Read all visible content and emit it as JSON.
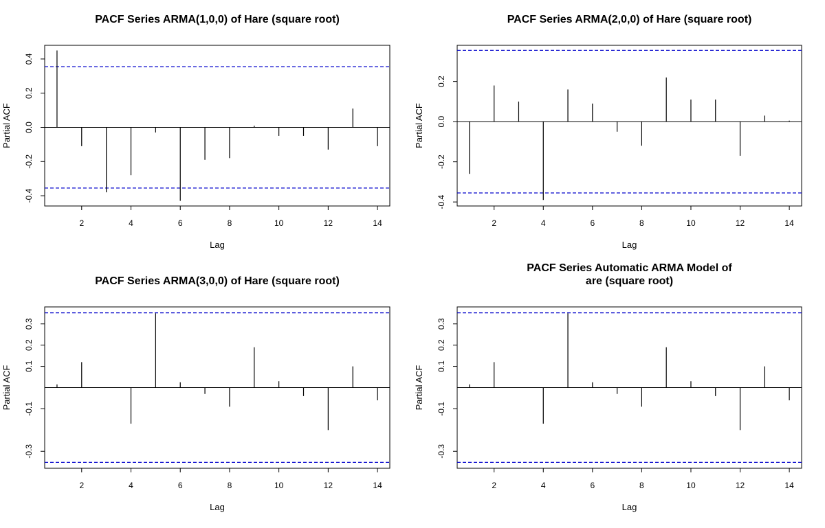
{
  "chart_data": [
    {
      "type": "bar",
      "title": [
        "PACF Series ARMA(1,0,0) of Hare (square root)"
      ],
      "xlabel": "Lag",
      "ylabel": "Partial ACF",
      "x": [
        1,
        2,
        3,
        4,
        5,
        6,
        7,
        8,
        9,
        10,
        11,
        12,
        13,
        14
      ],
      "values": [
        0.45,
        -0.11,
        -0.38,
        -0.28,
        -0.03,
        -0.43,
        -0.19,
        -0.18,
        0.01,
        -0.05,
        -0.05,
        -0.13,
        0.11,
        -0.11
      ],
      "xlim": [
        0.5,
        14.5
      ],
      "ylim": [
        -0.46,
        0.48
      ],
      "xticks": [
        2,
        4,
        6,
        8,
        10,
        12,
        14
      ],
      "yticks": [
        -0.4,
        -0.2,
        0.0,
        0.2,
        0.4
      ],
      "ytick_labels": [
        "-0.4",
        "-0.2",
        "0.0",
        "0.2",
        "0.4"
      ],
      "confidence_bound": 0.355,
      "bar_color": "#000000",
      "bound_color": "#0000cc",
      "grid": false
    },
    {
      "type": "bar",
      "title": [
        "PACF Series ARMA(2,0,0) of Hare (square root)"
      ],
      "xlabel": "Lag",
      "ylabel": "Partial ACF",
      "x": [
        1,
        2,
        3,
        4,
        5,
        6,
        7,
        8,
        9,
        10,
        11,
        12,
        13,
        14
      ],
      "values": [
        -0.26,
        0.18,
        0.1,
        -0.39,
        0.16,
        0.09,
        -0.05,
        -0.12,
        0.22,
        0.11,
        0.11,
        -0.17,
        0.03,
        0.005
      ],
      "xlim": [
        0.5,
        14.5
      ],
      "ylim": [
        -0.42,
        0.38
      ],
      "xticks": [
        2,
        4,
        6,
        8,
        10,
        12,
        14
      ],
      "yticks": [
        -0.4,
        -0.2,
        0.0,
        0.2
      ],
      "ytick_labels": [
        "-0.4",
        "-0.2",
        "0.0",
        "0.2"
      ],
      "confidence_bound": 0.355,
      "bar_color": "#000000",
      "bound_color": "#0000cc",
      "grid": false
    },
    {
      "type": "bar",
      "title": [
        "PACF Series ARMA(3,0,0) of Hare (square root)"
      ],
      "xlabel": "Lag",
      "ylabel": "Partial ACF",
      "x": [
        1,
        2,
        3,
        4,
        5,
        6,
        7,
        8,
        9,
        10,
        11,
        12,
        13,
        14
      ],
      "values": [
        0.015,
        0.12,
        0.0,
        -0.17,
        0.35,
        0.025,
        -0.03,
        -0.09,
        0.19,
        0.03,
        -0.04,
        -0.2,
        0.1,
        -0.06
      ],
      "xlim": [
        0.5,
        14.5
      ],
      "ylim": [
        -0.38,
        0.38
      ],
      "xticks": [
        2,
        4,
        6,
        8,
        10,
        12,
        14
      ],
      "yticks": [
        -0.3,
        -0.1,
        0.1,
        0.2,
        0.3
      ],
      "ytick_labels": [
        "-0.3",
        "-0.1",
        "0.1",
        "0.2",
        "0.3"
      ],
      "confidence_bound": 0.352,
      "bar_color": "#000000",
      "bound_color": "#0000cc",
      "grid": false
    },
    {
      "type": "bar",
      "title": [
        "PACF Series Automatic ARMA Model of",
        "are (square root)"
      ],
      "xlabel": "Lag",
      "ylabel": "Partial ACF",
      "x": [
        1,
        2,
        3,
        4,
        5,
        6,
        7,
        8,
        9,
        10,
        11,
        12,
        13,
        14
      ],
      "values": [
        0.015,
        0.12,
        0.0,
        -0.17,
        0.35,
        0.025,
        -0.03,
        -0.09,
        0.19,
        0.03,
        -0.04,
        -0.2,
        0.1,
        -0.06
      ],
      "xlim": [
        0.5,
        14.5
      ],
      "ylim": [
        -0.38,
        0.38
      ],
      "xticks": [
        2,
        4,
        6,
        8,
        10,
        12,
        14
      ],
      "yticks": [
        -0.3,
        -0.1,
        0.1,
        0.2,
        0.3
      ],
      "ytick_labels": [
        "-0.3",
        "-0.1",
        "0.1",
        "0.2",
        "0.3"
      ],
      "confidence_bound": 0.352,
      "bar_color": "#000000",
      "bound_color": "#0000cc",
      "grid": false
    }
  ]
}
